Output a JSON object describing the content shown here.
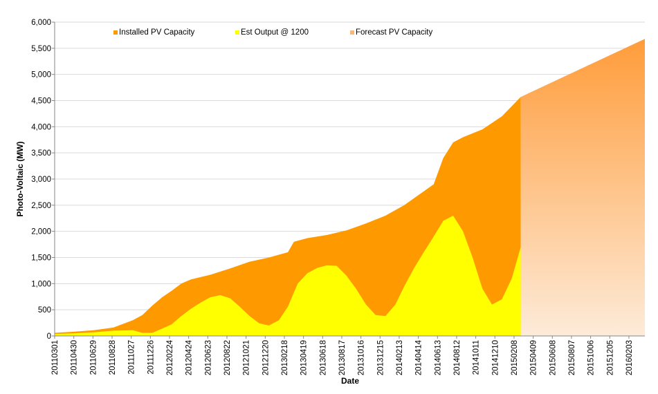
{
  "chart_data": {
    "type": "area",
    "xlabel": "Date",
    "ylabel": "Photo-Voltaic (MW)",
    "ylim": [
      0,
      6000
    ],
    "yticks": [
      0,
      500,
      1000,
      1500,
      2000,
      2500,
      3000,
      3500,
      4000,
      4500,
      5000,
      5500,
      6000
    ],
    "ytick_labels": [
      "0",
      "500",
      "1,000",
      "1,500",
      "2,000",
      "2,500",
      "3,000",
      "3,500",
      "4,000",
      "4,500",
      "5,000",
      "5,500",
      "6,000"
    ],
    "x_range": [
      "20110301",
      "20160324"
    ],
    "x_tick_labels": [
      "20110301",
      "20110430",
      "20110629",
      "20110828",
      "20111027",
      "20111226",
      "20120224",
      "20120424",
      "20120623",
      "20120822",
      "20121021",
      "20121220",
      "20130218",
      "20130419",
      "20130618",
      "20130817",
      "20131016",
      "20131215",
      "20140213",
      "20140414",
      "20140613",
      "20140812",
      "20141011",
      "20141210",
      "20150208",
      "20150409",
      "20150608",
      "20150807",
      "20151006",
      "20151205",
      "20160203"
    ],
    "grid": "horizontal",
    "legend_position": "top",
    "series": [
      {
        "name": "Installed PV Capacity",
        "color": "#ff9900",
        "x": [
          "20110301",
          "20110501",
          "20110701",
          "20110901",
          "20111101",
          "20111201",
          "20120101",
          "20120201",
          "20120301",
          "20120401",
          "20120501",
          "20120701",
          "20120901",
          "20121101",
          "20130101",
          "20130301",
          "20130320",
          "20130501",
          "20130701",
          "20130901",
          "20131101",
          "20140101",
          "20140301",
          "20140601",
          "20140701",
          "20140801",
          "20140901",
          "20141101",
          "20150101",
          "20150301"
        ],
        "values": [
          60,
          80,
          110,
          160,
          300,
          400,
          580,
          740,
          860,
          1000,
          1080,
          1170,
          1290,
          1420,
          1500,
          1600,
          1800,
          1870,
          1930,
          2020,
          2150,
          2300,
          2500,
          2900,
          3400,
          3700,
          3800,
          3950,
          4200,
          4570
        ]
      },
      {
        "name": "Est Output @ 1200",
        "color": "#ffff00",
        "x": [
          "20110301",
          "20110501",
          "20110701",
          "20110901",
          "20111101",
          "20111201",
          "20120101",
          "20120201",
          "20120301",
          "20120401",
          "20120501",
          "20120601",
          "20120701",
          "20120801",
          "20120901",
          "20121001",
          "20121101",
          "20121201",
          "20130101",
          "20130201",
          "20130301",
          "20130401",
          "20130501",
          "20130601",
          "20130701",
          "20130801",
          "20130901",
          "20131001",
          "20131101",
          "20131201",
          "20140101",
          "20140201",
          "20140301",
          "20140401",
          "20140501",
          "20140601",
          "20140701",
          "20140801",
          "20140901",
          "20141001",
          "20141101",
          "20141201",
          "20150101",
          "20150201",
          "20150301"
        ],
        "values": [
          40,
          50,
          70,
          100,
          110,
          60,
          60,
          140,
          220,
          380,
          520,
          640,
          740,
          780,
          720,
          560,
          380,
          240,
          200,
          300,
          560,
          1000,
          1200,
          1300,
          1350,
          1340,
          1150,
          900,
          600,
          400,
          380,
          600,
          950,
          1300,
          1600,
          1900,
          2200,
          2300,
          2000,
          1500,
          900,
          600,
          700,
          1100,
          1700
        ]
      },
      {
        "name": "Forecast PV Capacity",
        "color": "#fab77a",
        "x": [
          "20150301",
          "20160324"
        ],
        "values": [
          4570,
          5680
        ]
      }
    ]
  }
}
